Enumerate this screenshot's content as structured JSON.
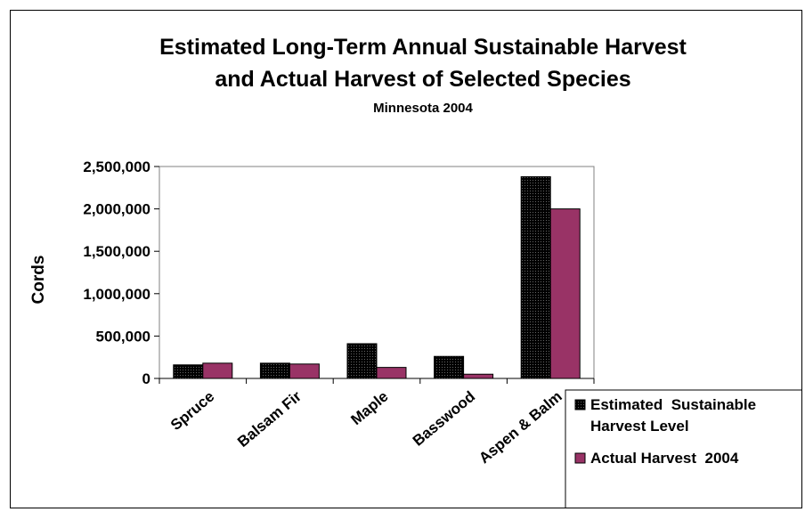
{
  "chart_data": {
    "type": "bar",
    "title": "Estimated Long-Term Annual Sustainable Harvest",
    "title_line2": "and Actual Harvest of Selected Species",
    "subtitle": "Minnesota 2004",
    "ylabel": "Cords",
    "xlabel": "",
    "ylim": [
      0,
      2500000
    ],
    "yticks": [
      0,
      500000,
      1000000,
      1500000,
      2000000,
      2500000
    ],
    "ytick_labels": [
      "0",
      "500,000",
      "1,000,000",
      "1,500,000",
      "2,000,000",
      "2,500,000"
    ],
    "categories": [
      "Spruce",
      "Balsam Fir",
      "Maple",
      "Basswood",
      "Aspen & Balm"
    ],
    "series": [
      {
        "name": "Estimated Sustainable Harvest Level",
        "legend_line1": "Estimated  Sustainable",
        "legend_line2": "Harvest Level",
        "color": "#1a1a1a",
        "values": [
          160000,
          180000,
          410000,
          260000,
          2380000
        ]
      },
      {
        "name": "Actual Harvest 2004",
        "legend_line1": "Actual Harvest  2004",
        "color": "#993366",
        "values": [
          180000,
          170000,
          130000,
          50000,
          2000000
        ]
      }
    ],
    "grid": false,
    "legend_position": "bottom-right"
  }
}
